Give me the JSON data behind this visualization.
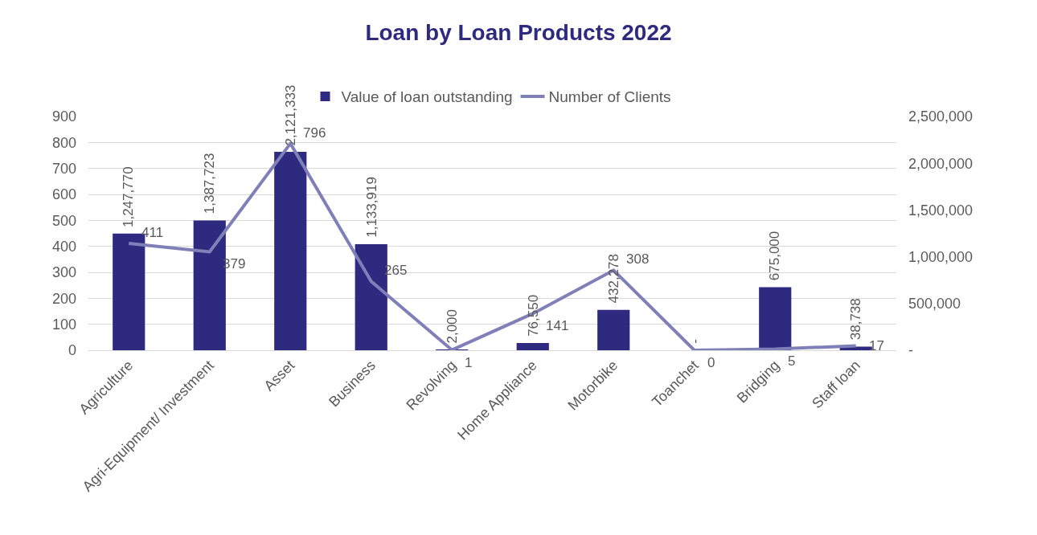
{
  "chart_data": {
    "type": "bar",
    "title": "Loan by Loan Products 2022",
    "categories": [
      "Agriculture",
      "Agri-Equipment/ Investment",
      "Asset",
      "Business",
      "Revolving",
      "Home Appliance",
      "Motorbike",
      "Toanchet",
      "Bridging",
      "Staff loan"
    ],
    "series": [
      {
        "name": "Value of loan outstanding",
        "axis": "y2",
        "color": "#2e2a80",
        "values": [
          1247770,
          1387723,
          2121333,
          1133919,
          2000,
          76550,
          432278,
          0,
          675000,
          38738
        ],
        "value_labels": [
          "1,247,770",
          "1,387,723",
          "2,121,333",
          "1,133,919",
          "2,000",
          "76,550",
          "432,278",
          "-",
          "675,000",
          "38,738"
        ]
      },
      {
        "name": "Number of Clients",
        "type": "line",
        "axis": "y",
        "color": "#8080b8",
        "values": [
          411,
          379,
          796,
          265,
          1,
          141,
          308,
          0,
          5,
          17
        ],
        "value_labels": [
          "411",
          "379",
          "796",
          "265",
          "1",
          "141",
          "308",
          "0",
          "5",
          "17"
        ]
      }
    ],
    "ylim": [
      0,
      900
    ],
    "yticks": [
      0,
      100,
      200,
      300,
      400,
      500,
      600,
      700,
      800,
      900
    ],
    "y2lim": [
      0,
      2500000
    ],
    "y2ticks": [
      {
        "value": 0,
        "label": "-"
      },
      {
        "value": 500000,
        "label": "500,000"
      },
      {
        "value": 1000000,
        "label": "1,000,000"
      },
      {
        "value": 1500000,
        "label": "1,500,000"
      },
      {
        "value": 2000000,
        "label": "2,000,000"
      },
      {
        "value": 2500000,
        "label": "2,500,000"
      }
    ],
    "grid": "y",
    "legend": "top",
    "marker": "none",
    "line_style": "solid"
  }
}
